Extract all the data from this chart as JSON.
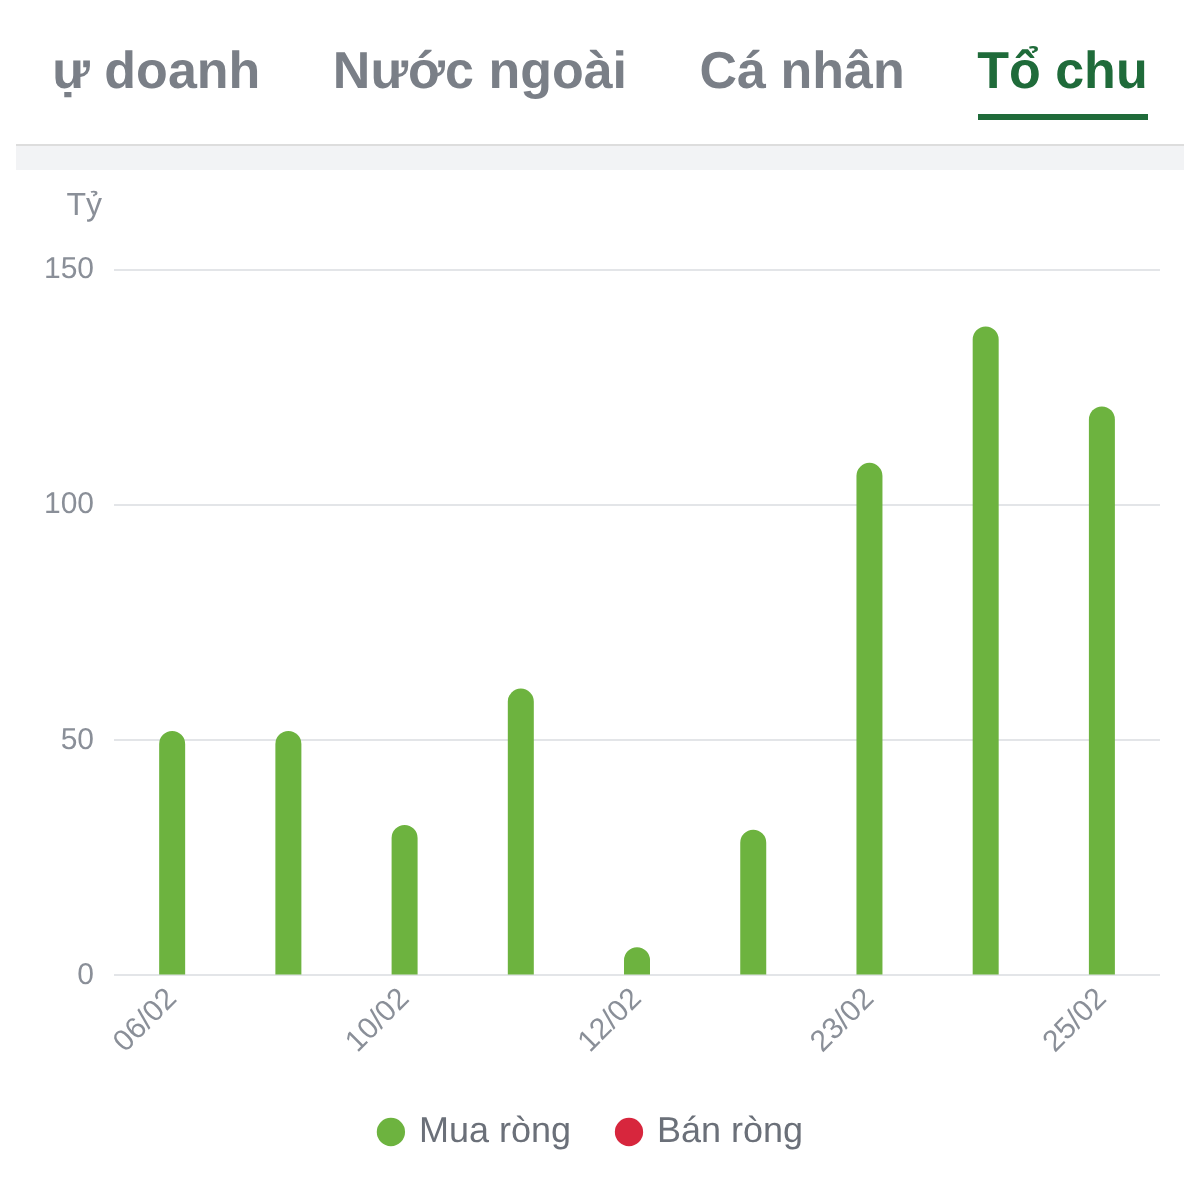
{
  "chart_data": {
    "type": "bar",
    "ylabel": "Tỷ",
    "annotations": [
      "ự doanh",
      "Nước ngoài",
      "Cá nhân",
      "Tổ chu"
    ],
    "categories": [
      "06/02",
      null,
      "10/02",
      null,
      "12/02",
      null,
      "23/02",
      null,
      "25/02"
    ],
    "series": [
      {
        "name": "Mua ròng",
        "color": "#6db33f",
        "values": [
          52,
          52,
          32,
          61,
          6,
          31,
          109,
          138,
          121
        ]
      },
      {
        "name": "Bán ròng",
        "color": "#d7263d",
        "values": [
          null,
          null,
          null,
          null,
          null,
          null,
          null,
          null,
          null
        ]
      }
    ],
    "ylim": [
      0,
      150
    ],
    "yticks": [
      0,
      50,
      100,
      150
    ],
    "grid": "y",
    "legend": "bottom"
  }
}
